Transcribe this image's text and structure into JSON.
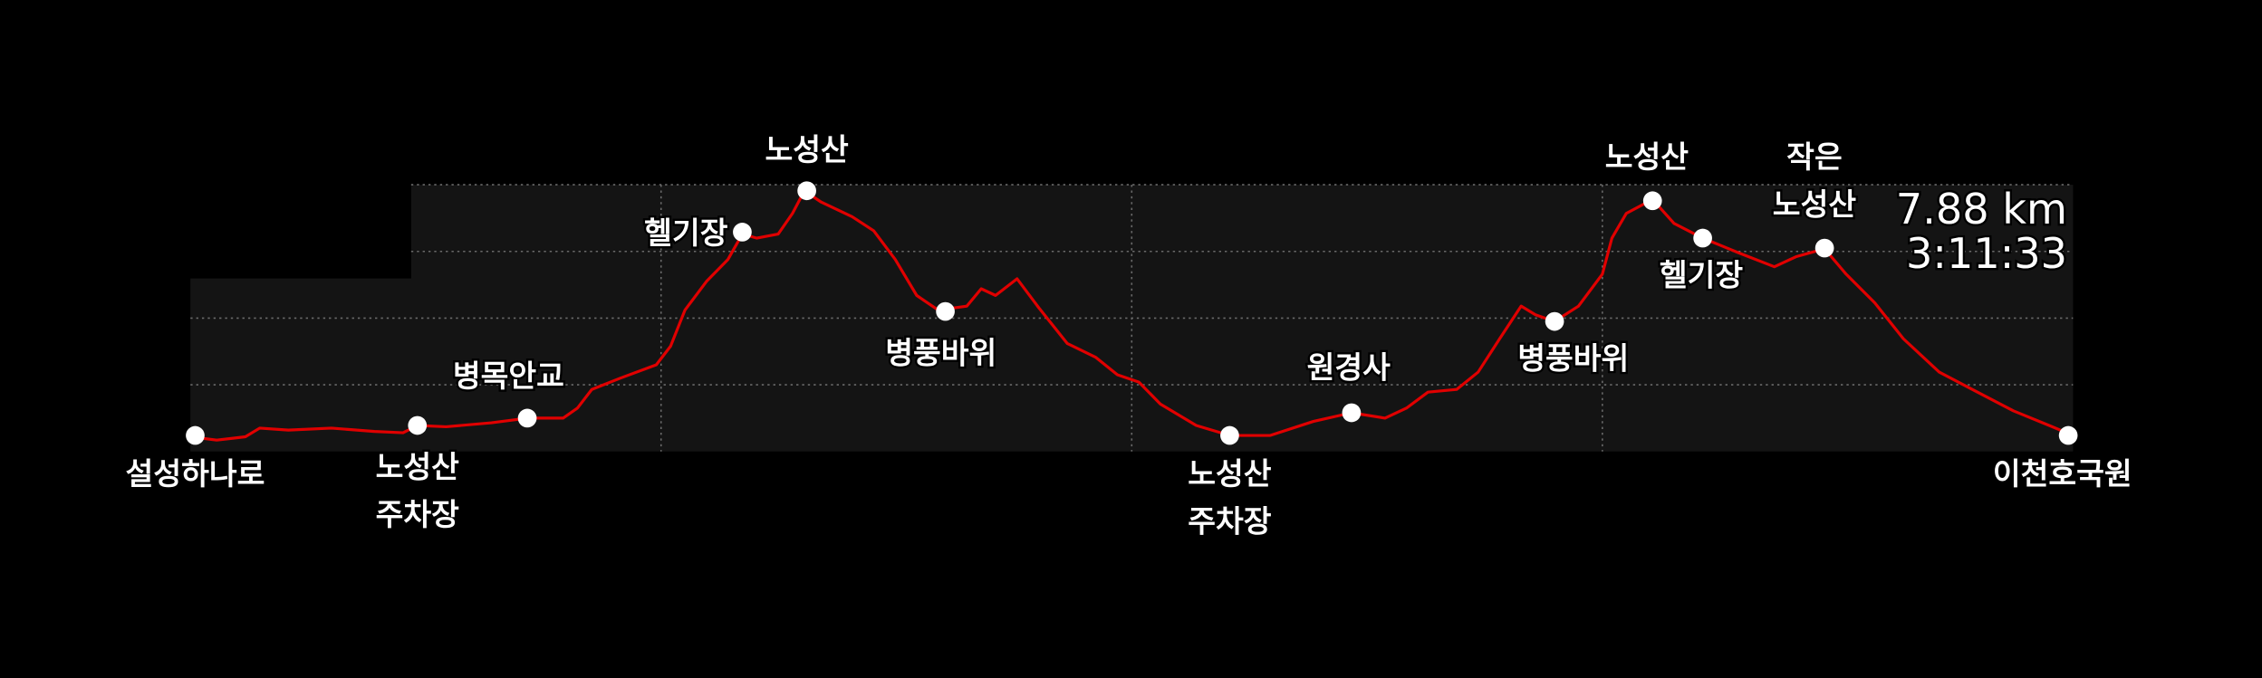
{
  "chart_data": {
    "type": "line",
    "stats": [
      "7.88 km",
      "3:11:33"
    ],
    "xlim": [
      0,
      7.88
    ],
    "ylim": [
      0,
      4
    ],
    "xgrid": [
      1.97,
      3.94,
      5.91
    ],
    "ygrid": [
      1,
      2,
      3,
      4
    ],
    "color": "#e00000",
    "x": [
      0,
      0.11,
      0.23,
      0.29,
      0.41,
      0.59,
      0.77,
      0.89,
      0.95,
      1.07,
      1.26,
      1.41,
      1.56,
      1.62,
      1.68,
      1.8,
      1.95,
      2.01,
      2.07,
      2.16,
      2.25,
      2.31,
      2.37,
      2.46,
      2.52,
      2.57,
      2.64,
      2.77,
      2.86,
      2.95,
      3.04,
      3.13,
      3.25,
      3.31,
      3.37,
      3.46,
      3.55,
      3.67,
      3.79,
      3.88,
      3.97,
      4.06,
      4.21,
      4.35,
      4.52,
      4.7,
      4.86,
      5.0,
      5.09,
      5.18,
      5.3,
      5.39,
      5.48,
      5.57,
      5.63,
      5.71,
      5.81,
      5.91,
      5.95,
      6.01,
      6.12,
      6.21,
      6.33,
      6.48,
      6.63,
      6.72,
      6.84,
      6.93,
      7.05,
      7.17,
      7.32,
      7.48,
      7.63,
      7.78,
      7.88
    ],
    "values": [
      0.22,
      0.17,
      0.22,
      0.35,
      0.32,
      0.35,
      0.3,
      0.28,
      0.39,
      0.37,
      0.43,
      0.5,
      0.5,
      0.65,
      0.93,
      1.1,
      1.3,
      1.58,
      2.12,
      2.55,
      2.88,
      3.26,
      3.2,
      3.26,
      3.57,
      3.91,
      3.74,
      3.52,
      3.31,
      2.88,
      2.34,
      2.12,
      2.18,
      2.44,
      2.34,
      2.59,
      2.16,
      1.62,
      1.41,
      1.15,
      1.04,
      0.71,
      0.39,
      0.24,
      0.24,
      0.45,
      0.58,
      0.5,
      0.65,
      0.89,
      0.93,
      1.19,
      1.69,
      2.18,
      2.05,
      1.95,
      2.18,
      2.66,
      3.2,
      3.57,
      3.78,
      3.42,
      3.2,
      2.98,
      2.77,
      2.92,
      3.04,
      2.66,
      2.23,
      1.69,
      1.19,
      0.89,
      0.61,
      0.39,
      0.24
    ],
    "markers": [
      {
        "label": [
          "설성하나로"
        ],
        "x": 0.02,
        "y": 0.24
      },
      {
        "label": [
          "노성산",
          "주차장"
        ],
        "x": 0.95,
        "y": 0.39
      },
      {
        "label": [
          "병목안교"
        ],
        "x": 1.41,
        "y": 0.5
      },
      {
        "label": [
          "헬기장"
        ],
        "x": 2.31,
        "y": 3.29
      },
      {
        "label": [
          "노성산"
        ],
        "x": 2.58,
        "y": 3.91
      },
      {
        "label": [
          "병풍바위"
        ],
        "x": 3.16,
        "y": 2.1
      },
      {
        "label": [
          "노성산",
          "주차장"
        ],
        "x": 4.35,
        "y": 0.24
      },
      {
        "label": [
          "원경사"
        ],
        "x": 4.86,
        "y": 0.58
      },
      {
        "label": [
          "병풍바위"
        ],
        "x": 5.71,
        "y": 1.95
      },
      {
        "label": [
          "노성산"
        ],
        "x": 6.12,
        "y": 3.76
      },
      {
        "label": [
          "헬기장"
        ],
        "x": 6.33,
        "y": 3.2
      },
      {
        "label": [
          "작은",
          "노성산"
        ],
        "x": 6.84,
        "y": 3.05
      },
      {
        "label": [
          "이천호국원"
        ],
        "x": 7.86,
        "y": 0.24
      }
    ]
  }
}
